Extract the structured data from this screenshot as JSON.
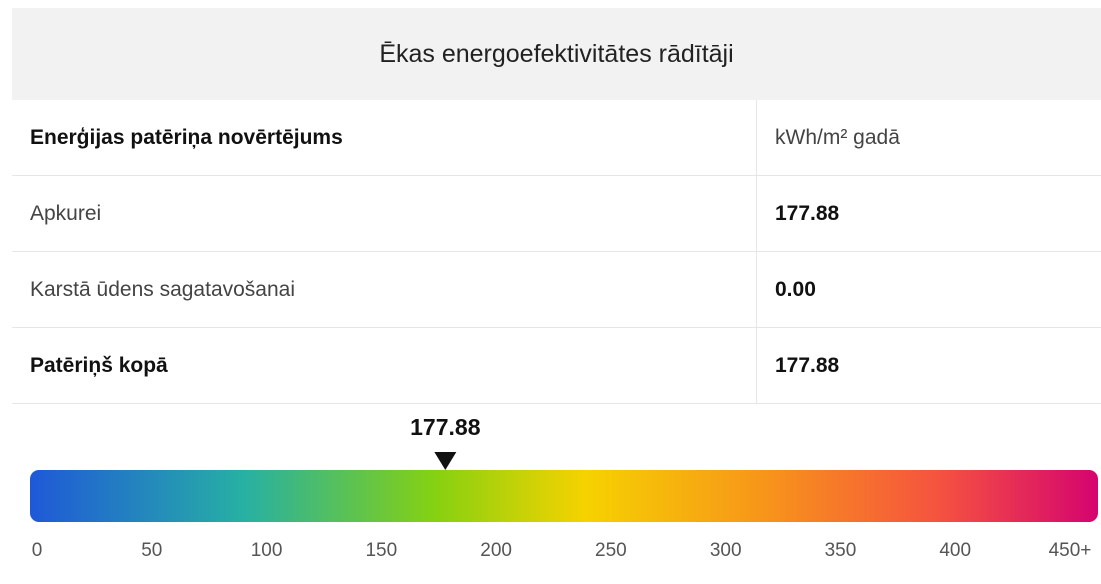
{
  "header": {
    "title": "Ēkas energoefektivitātes rādītāji"
  },
  "table": {
    "header": [
      "Enerģijas patēriņa novērtējums",
      "kWh/m² gadā"
    ],
    "rows": [
      [
        "Apkurei",
        "177.88"
      ],
      [
        "Karstā ūdens sagatavošanai",
        "0.00"
      ],
      [
        "Patēriņš kopā",
        "177.88"
      ]
    ]
  },
  "scale": {
    "value": 177.88,
    "lim": [
      0,
      450
    ],
    "ticks": [
      0,
      50,
      100,
      150,
      200,
      250,
      300,
      350,
      400,
      {
        "value": 450,
        "label": "450+"
      }
    ]
  }
}
